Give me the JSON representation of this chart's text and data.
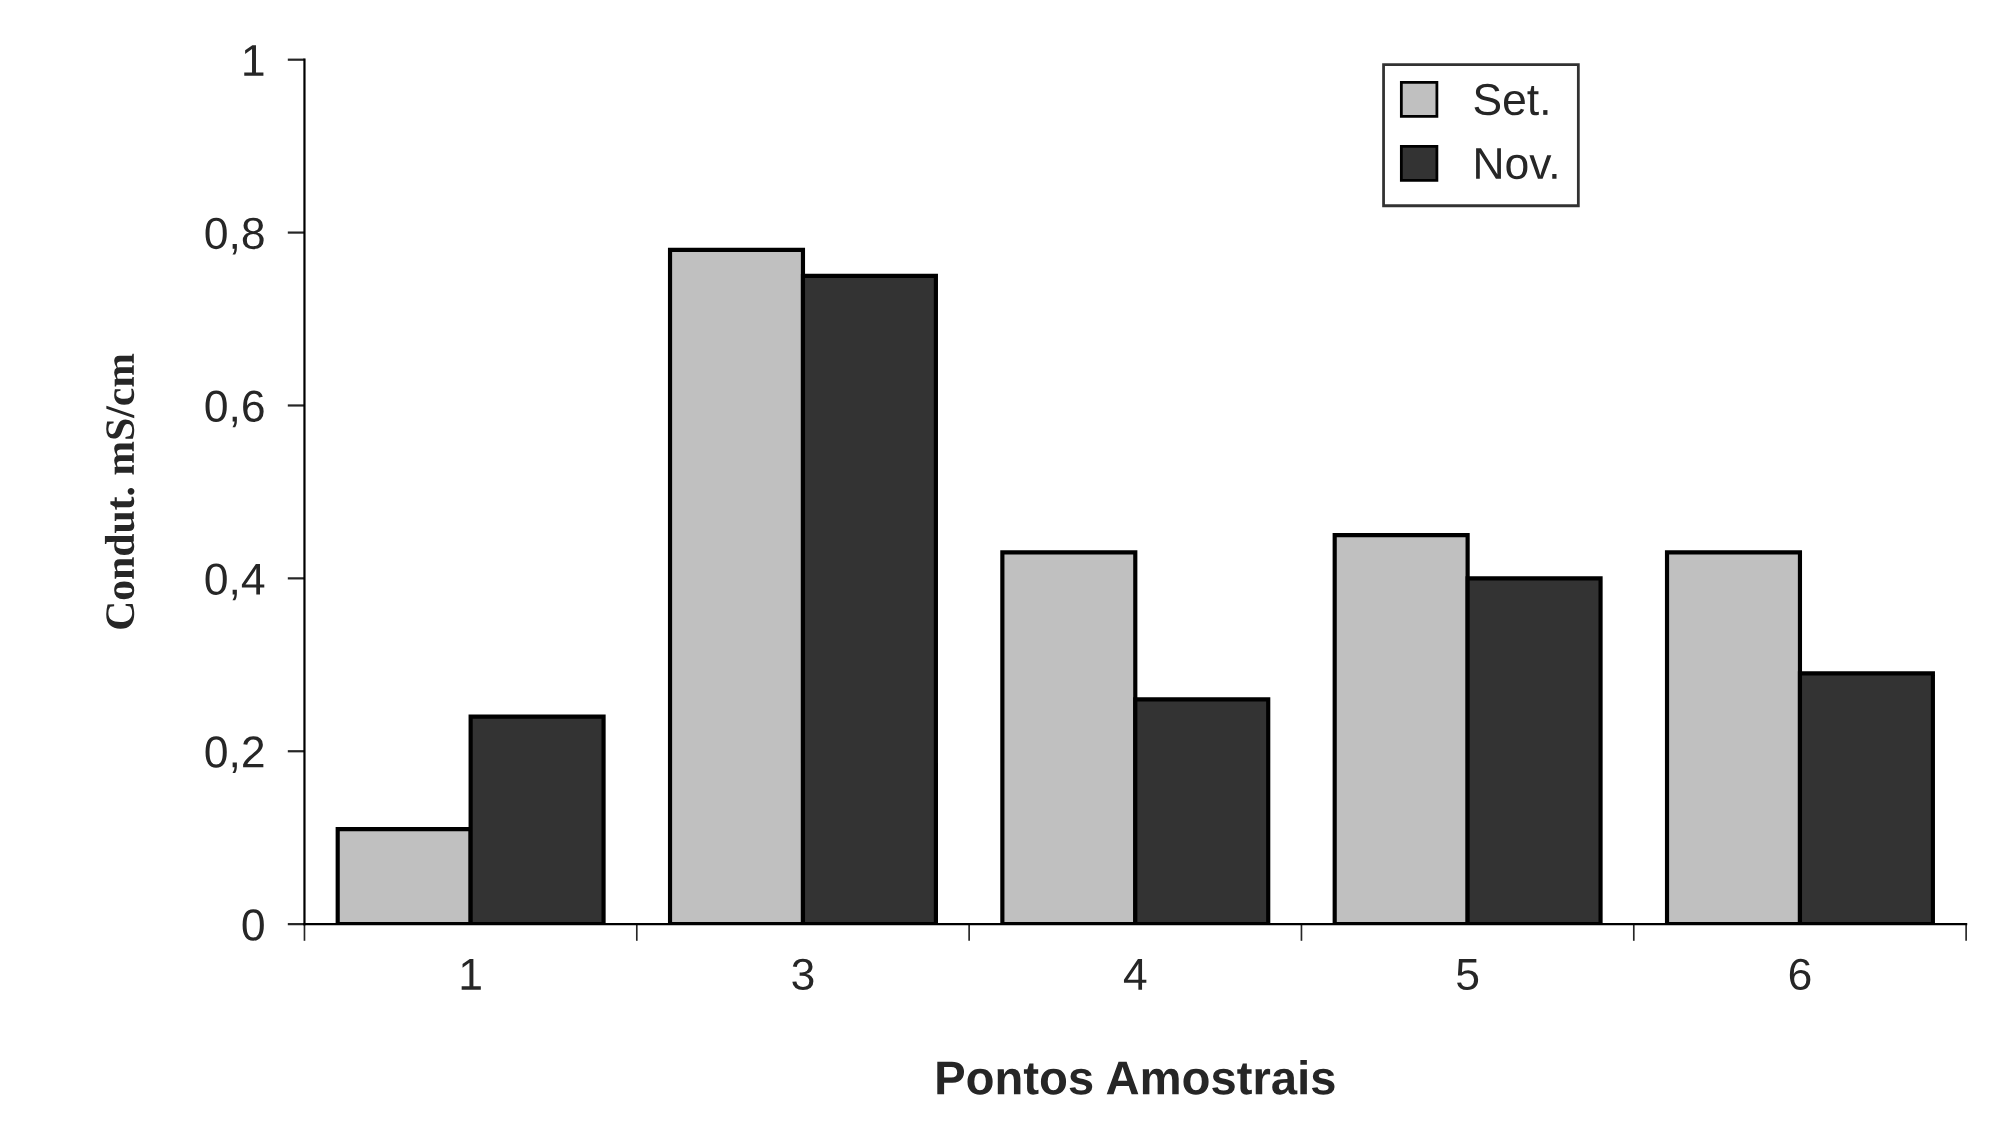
{
  "chart_data": {
    "type": "bar",
    "xlabel": "Pontos Amostrais",
    "ylabel": "Condut. mS/cm",
    "categories": [
      "1",
      "3",
      "4",
      "5",
      "6"
    ],
    "series": [
      {
        "name": "Set.",
        "color": "#c0c0c0",
        "values": [
          0.11,
          0.78,
          0.43,
          0.45,
          0.43
        ]
      },
      {
        "name": "Nov.",
        "color": "#333333",
        "values": [
          0.24,
          0.75,
          0.26,
          0.4,
          0.29
        ]
      }
    ],
    "ylim": [
      0,
      1
    ],
    "yticks": [
      {
        "value": 0,
        "label": "0"
      },
      {
        "value": 0.2,
        "label": "0,2"
      },
      {
        "value": 0.4,
        "label": "0,4"
      },
      {
        "value": 0.6,
        "label": "0,6"
      },
      {
        "value": 0.8,
        "label": "0,8"
      },
      {
        "value": 1,
        "label": "1"
      }
    ],
    "grid": false,
    "legend": "top right"
  }
}
